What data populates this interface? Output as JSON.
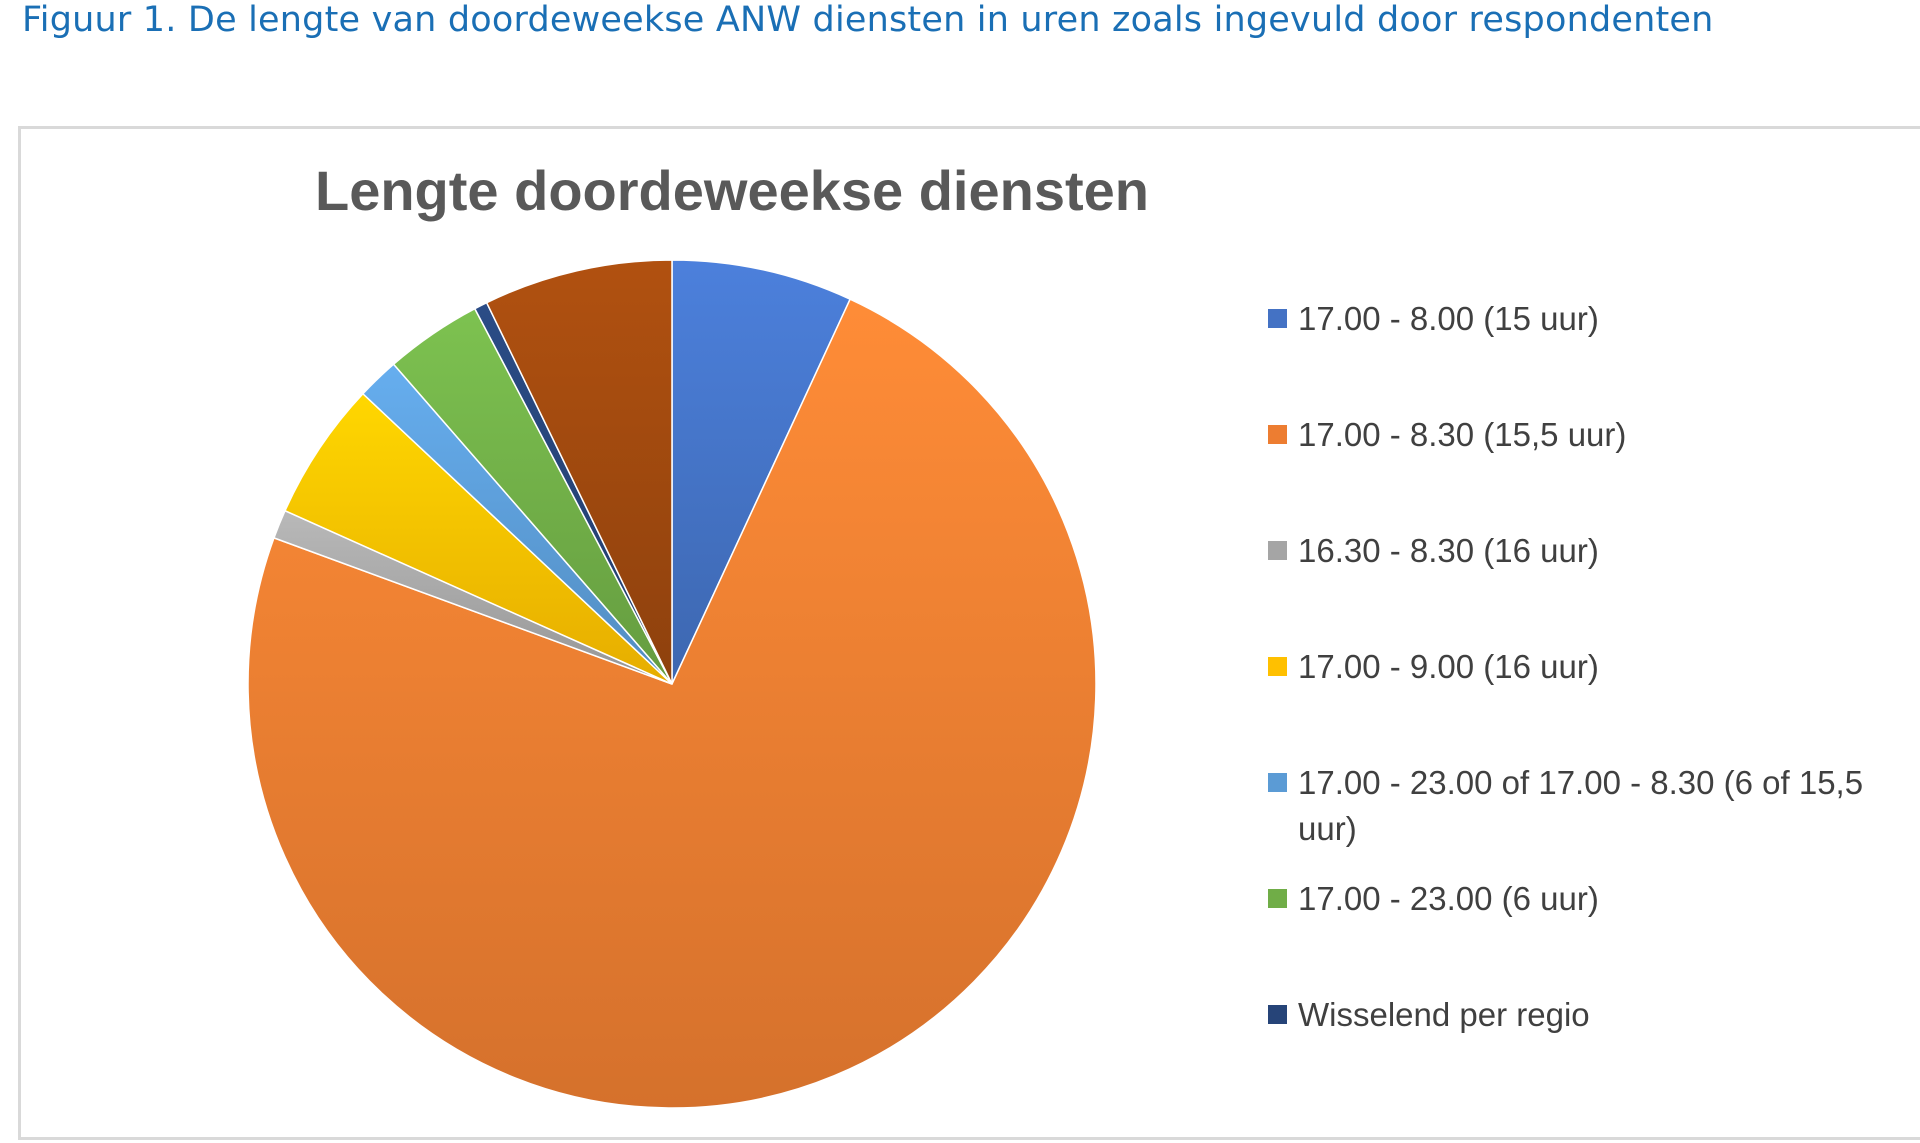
{
  "caption": "Figuur 1.  De lengte van doordeweekse ANW diensten in uren zoals ingevuld door respondenten",
  "chart_data": {
    "type": "pie",
    "title": "Lengte doordeweekse diensten",
    "legend_position": "right",
    "categories": [
      "17.00 - 8.00 (15 uur)",
      "17.00 - 8.30 (15,5 uur)",
      "16.30 - 8.30 (16 uur)",
      "17.00 - 9.00 (16 uur)",
      "17.00 - 23.00 of 17.00 - 8.30 (6 of 15,5 uur)",
      "17.00 - 23.00 (6 uur)",
      "Wisselend per regio",
      ""
    ],
    "values": [
      6.9,
      73.7,
      1.1,
      5.3,
      1.6,
      3.7,
      0.5,
      7.2
    ],
    "colors": [
      "#4472c4",
      "#ed7d31",
      "#a5a5a5",
      "#ffc000",
      "#5b9bd5",
      "#70ad47",
      "#264478",
      "#9e480e"
    ]
  }
}
